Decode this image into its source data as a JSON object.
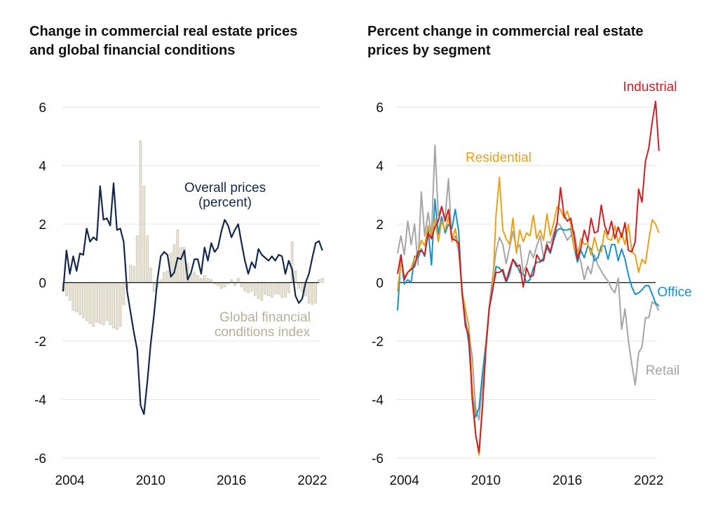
{
  "titles": {
    "left": "Change in commercial real estate prices and global financial conditions",
    "right": "Percent change in commercial real estate prices by segment"
  },
  "chart_data": [
    {
      "type": "line",
      "title": "Change in commercial real estate prices and global financial conditions",
      "xlim": [
        2003.5,
        2022.5
      ],
      "ylim": [
        -6.3,
        6.3
      ],
      "x_ticks": [
        2004,
        2010,
        2016,
        2022
      ],
      "y_ticks": [
        -6,
        -4,
        -2,
        0,
        2,
        4,
        6
      ],
      "grid": true,
      "colors": {
        "overall": "#14284b",
        "gfci": "#e9e5d6",
        "gfci_edge": "#bdb69f"
      },
      "annotations": {
        "overall": [
          "Overall prices",
          "(percent)"
        ],
        "gfci": [
          "Global financial",
          "conditions index"
        ]
      },
      "series": [
        {
          "name": "Overall prices (percent)",
          "type": "line",
          "x_start": 2003.5,
          "x_step": 0.25,
          "values": [
            -0.3,
            1.1,
            0.3,
            0.9,
            0.4,
            1.0,
            0.95,
            1.85,
            1.4,
            1.55,
            1.45,
            3.3,
            2.15,
            2.2,
            1.95,
            3.4,
            1.8,
            1.85,
            1.4,
            -0.3,
            -1.0,
            -1.7,
            -2.3,
            -4.2,
            -4.5,
            -3.4,
            -2.1,
            -1.1,
            0.1,
            0.9,
            1.05,
            0.95,
            0.2,
            0.35,
            0.85,
            0.8,
            1.1,
            0.1,
            0.35,
            0.8,
            0.8,
            0.3,
            1.2,
            0.75,
            1.35,
            1.05,
            1.2,
            1.75,
            2.15,
            1.95,
            1.55,
            1.8,
            2.0,
            1.35,
            0.75,
            0.3,
            0.7,
            0.5,
            1.15,
            0.95,
            0.85,
            0.75,
            0.9,
            0.75,
            0.95,
            0.9,
            0.3,
            0.75,
            0.45,
            -0.45,
            -0.7,
            -0.55,
            0.0,
            0.3,
            0.85,
            1.35,
            1.42,
            1.1
          ]
        },
        {
          "name": "Global financial conditions index",
          "type": "bar",
          "x_start": 2003.5,
          "x_step": 0.25,
          "values": [
            -0.3,
            -0.45,
            -0.6,
            -0.95,
            -1.0,
            -1.1,
            -1.2,
            -1.3,
            -1.4,
            -1.5,
            -1.35,
            -1.4,
            -1.45,
            -1.3,
            -1.45,
            -1.55,
            -1.6,
            -1.5,
            -0.75,
            -0.2,
            0.6,
            0.55,
            1.6,
            4.85,
            3.3,
            1.6,
            0.5,
            -0.3,
            -0.15,
            0.1,
            0.35,
            0.4,
            1.0,
            1.3,
            1.8,
            1.2,
            1.2,
            0.65,
            0.3,
            0.35,
            0.25,
            0.15,
            0.25,
            0.15,
            0.1,
            -0.05,
            -0.1,
            -0.2,
            -0.15,
            -0.05,
            0.1,
            -0.1,
            0.15,
            -0.15,
            -0.3,
            -0.35,
            -0.3,
            -0.45,
            -0.55,
            -0.6,
            -0.4,
            -0.45,
            -0.5,
            -0.4,
            -0.4,
            -0.5,
            -0.5,
            -0.35,
            1.4,
            0.4,
            -0.2,
            -0.3,
            -0.45,
            -0.7,
            -0.75,
            -0.7,
            0.1,
            0.15
          ]
        }
      ]
    },
    {
      "type": "line",
      "title": "Percent change in commercial real estate prices by segment",
      "xlim": [
        2003.5,
        2022.5
      ],
      "ylim": [
        -6.3,
        6.3
      ],
      "x_ticks": [
        2004,
        2010,
        2016,
        2022
      ],
      "y_ticks": [
        -6,
        -4,
        -2,
        0,
        2,
        4,
        6
      ],
      "grid": true,
      "series": [
        {
          "name": "Retail",
          "color": "#a5a5a5",
          "x_start": 2003.5,
          "x_step": 0.25,
          "values": [
            1.0,
            1.6,
            0.95,
            2.1,
            1.3,
            2.0,
            0.6,
            3.1,
            1.6,
            2.4,
            1.6,
            4.7,
            2.3,
            2.6,
            2.2,
            3.55,
            1.4,
            1.6,
            1.05,
            -0.2,
            -1.3,
            -1.8,
            -2.5,
            -4.3,
            -4.7,
            -3.4,
            -2.1,
            -0.8,
            0.2,
            1.05,
            1.55,
            1.3,
            0.65,
            1.2,
            1.75,
            1.15,
            1.3,
            0.35,
            0.6,
            1.1,
            0.85,
            1.25,
            1.6,
            0.85,
            1.4,
            1.35,
            1.7,
            2.05,
            1.95,
            1.7,
            1.45,
            1.6,
            1.75,
            1.05,
            0.7,
            0.1,
            0.55,
            0.3,
            0.95,
            0.6,
            0.4,
            0.2,
            0.05,
            -0.2,
            -0.35,
            0.15,
            -1.6,
            -0.9,
            -2.0,
            -2.8,
            -3.5,
            -2.4,
            -2.2,
            -1.2,
            -1.2,
            -0.65,
            -0.75,
            -0.95
          ]
        },
        {
          "name": "Office",
          "color": "#1591c8",
          "x_start": 2003.5,
          "x_step": 0.25,
          "values": [
            -0.95,
            0.85,
            -0.05,
            0.1,
            0.0,
            0.9,
            0.85,
            1.15,
            0.9,
            1.8,
            0.6,
            2.85,
            1.65,
            2.25,
            1.7,
            2.0,
            1.85,
            2.5,
            1.75,
            -0.4,
            -1.3,
            -2.1,
            -3.7,
            -4.6,
            -4.3,
            -3.1,
            -2.1,
            -0.9,
            -0.3,
            0.55,
            0.5,
            0.35,
            0.0,
            0.3,
            0.8,
            0.65,
            0.35,
            0.3,
            0.0,
            0.1,
            0.5,
            0.7,
            0.7,
            0.85,
            1.2,
            1.0,
            1.45,
            1.8,
            1.85,
            1.8,
            1.8,
            1.85,
            1.2,
            0.7,
            1.1,
            0.85,
            1.25,
            1.15,
            0.75,
            0.85,
            1.25,
            1.25,
            0.8,
            1.3,
            1.3,
            0.75,
            1.15,
            0.8,
            0.25,
            -0.15,
            -0.4,
            -0.35,
            -0.25,
            -0.1,
            -0.1,
            -0.4,
            -0.7,
            -0.8
          ]
        },
        {
          "name": "Residential",
          "color": "#e8a219",
          "x_start": 2003.5,
          "x_step": 0.25,
          "values": [
            -0.3,
            0.7,
            0.2,
            0.35,
            0.5,
            0.85,
            1.0,
            1.45,
            1.25,
            1.95,
            1.55,
            2.2,
            1.4,
            2.1,
            1.8,
            2.25,
            1.45,
            1.85,
            1.15,
            -0.3,
            -0.9,
            -1.5,
            -3.5,
            -5.2,
            -5.9,
            -4.3,
            -2.2,
            -0.9,
            -0.2,
            2.3,
            3.6,
            1.8,
            1.5,
            1.3,
            2.2,
            1.0,
            1.8,
            1.4,
            1.7,
            1.6,
            2.3,
            1.5,
            1.8,
            1.45,
            2.35,
            1.6,
            2.05,
            2.6,
            2.5,
            2.2,
            2.45,
            2.0,
            1.2,
            0.95,
            1.5,
            1.3,
            1.35,
            0.95,
            1.55,
            1.1,
            1.05,
            1.8,
            1.5,
            1.45,
            1.95,
            1.35,
            1.7,
            1.3,
            2.0,
            1.05,
            0.95,
            0.35,
            0.8,
            0.65,
            1.45,
            2.15,
            2.0,
            1.7
          ]
        },
        {
          "name": "Industrial",
          "color": "#cc2025",
          "x_start": 2003.5,
          "x_step": 0.25,
          "values": [
            0.3,
            0.95,
            0.1,
            0.35,
            0.45,
            0.55,
            1.05,
            1.1,
            0.95,
            1.7,
            1.5,
            1.9,
            2.1,
            2.6,
            2.1,
            2.5,
            1.5,
            1.45,
            1.35,
            -0.35,
            -1.5,
            -1.8,
            -4.0,
            -5.2,
            -5.8,
            -4.2,
            -2.3,
            -0.9,
            -0.2,
            0.35,
            0.35,
            0.45,
            0.05,
            0.45,
            0.8,
            0.55,
            0.6,
            -0.15,
            0.5,
            0.2,
            0.25,
            0.95,
            0.75,
            0.75,
            1.3,
            1.05,
            1.55,
            2.05,
            3.25,
            2.3,
            2.1,
            2.2,
            1.6,
            0.8,
            1.2,
            1.8,
            1.4,
            2.2,
            1.7,
            1.75,
            2.65,
            1.95,
            1.65,
            2.1,
            1.5,
            1.9,
            1.55,
            2.05,
            1.1,
            1.05,
            1.4,
            3.2,
            2.75,
            4.15,
            4.6,
            5.5,
            6.2,
            4.5
          ]
        }
      ],
      "annotations": [
        {
          "text": "Industrial",
          "series": "Industrial"
        },
        {
          "text": "Residential",
          "series": "Residential"
        },
        {
          "text": "Office",
          "series": "Office"
        },
        {
          "text": "Retail",
          "series": "Retail"
        }
      ]
    }
  ]
}
